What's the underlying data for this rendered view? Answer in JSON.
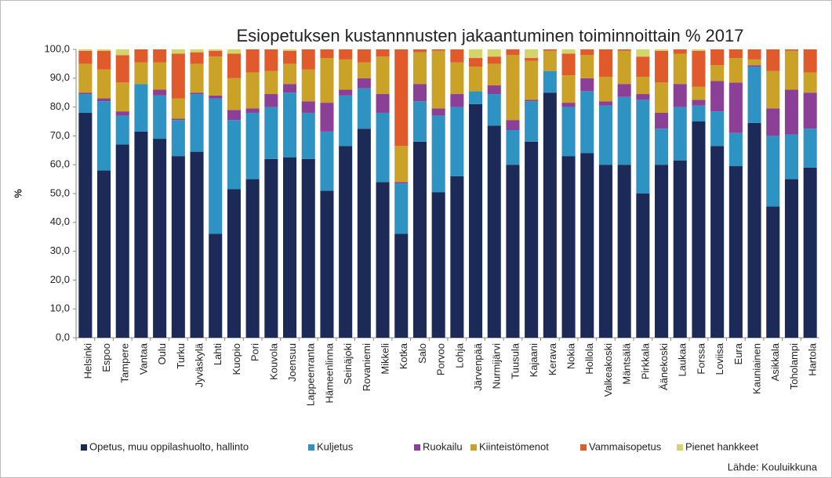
{
  "chart_data": {
    "type": "stacked_bar",
    "title": "Esiopetuksen kustannnusten jakaantuminen toiminnoittain % 2017",
    "y_label": "%",
    "source": "Lähde: Kouluikkuna",
    "categories": [
      "Helsinki",
      "Espoo",
      "Tampere",
      "Vantaa",
      "Oulu",
      "Turku",
      "Jyväskylä",
      "Lahti",
      "Kuopio",
      "Pori",
      "Kouvola",
      "Joensuu",
      "Lappeenranta",
      "Hämeenlinna",
      "Seinäjoki",
      "Rovaniemi",
      "Mikkeli",
      "Kotka",
      "Salo",
      "Porvoo",
      "Lohja",
      "Järvenpää",
      "Nurmijärvi",
      "Tuusula",
      "Kajaani",
      "Kerava",
      "Nokia",
      "Hollola",
      "Valkeakoski",
      "Mäntsälä",
      "Pirkkala",
      "Äänekoski",
      "Laukaa",
      "Forssa",
      "Loviisa",
      "Eura",
      "Kauniainen",
      "Asikkala",
      "Toholampi",
      "Hartola"
    ],
    "series": [
      {
        "name": "Opetus, muu oppilashuolto, hallinto",
        "color": "#1b2a57",
        "values": [
          78,
          58,
          67,
          71.5,
          69,
          63,
          64.5,
          36,
          51.5,
          55,
          62,
          62.5,
          62,
          51,
          66.5,
          72.5,
          54,
          36,
          68,
          50.5,
          56,
          81,
          73.5,
          60,
          68,
          85,
          63,
          64,
          60,
          60,
          50,
          60,
          61.5,
          75,
          66.5,
          59.5,
          74.5,
          45.5,
          55,
          59
        ]
      },
      {
        "name": "Kuljetus",
        "color": "#2e93c3",
        "values": [
          6.5,
          24,
          10,
          16.5,
          15,
          12.5,
          20,
          47,
          24,
          23,
          18,
          22.5,
          16,
          20.5,
          17.5,
          14,
          24,
          17.5,
          14,
          26.5,
          24,
          4.5,
          11,
          12,
          14,
          7.5,
          17,
          21.5,
          20.5,
          23.5,
          32.5,
          12.5,
          18.5,
          5.5,
          12,
          11.5,
          19.5,
          24.5,
          15.5,
          13.5
        ]
      },
      {
        "name": "Ruokailu",
        "color": "#8c3f96",
        "values": [
          0.5,
          1,
          1.5,
          0,
          2,
          0.5,
          0.5,
          1,
          3.5,
          1.5,
          4.5,
          3,
          4,
          10,
          2,
          3.5,
          6.5,
          0.5,
          6,
          2.5,
          4.5,
          0,
          3,
          3.5,
          0.5,
          0,
          1.5,
          4.5,
          1.5,
          4.5,
          2,
          5.5,
          8,
          2,
          10.5,
          17.5,
          0.5,
          9.5,
          15.5,
          12.5
        ]
      },
      {
        "name": "Kiinteistömenot",
        "color": "#c9a227",
        "values": [
          10,
          10,
          10,
          7.5,
          9.5,
          7,
          10,
          13.5,
          11,
          12.5,
          8,
          7,
          11,
          15.5,
          10.5,
          5.5,
          13,
          12.5,
          11,
          20,
          11,
          8.5,
          7.5,
          22.5,
          13.5,
          7,
          9.5,
          8,
          8.5,
          11.5,
          6,
          10.5,
          10.5,
          4.5,
          5.5,
          8.5,
          2,
          13,
          13.5,
          7
        ]
      },
      {
        "name": "Vammaisopetus",
        "color": "#e05a2b",
        "values": [
          4.5,
          6.5,
          9.5,
          4.5,
          4.5,
          15.5,
          4,
          2,
          8.5,
          8,
          7.5,
          4.5,
          7,
          3,
          3.5,
          4.5,
          2.5,
          33.5,
          1,
          0.5,
          4.5,
          3,
          2.5,
          2,
          1,
          0.5,
          7.5,
          2,
          9.5,
          0.5,
          7,
          11,
          1.5,
          12.5,
          5.5,
          3,
          3.5,
          7.5,
          0.5,
          8
        ]
      },
      {
        "name": "Pienet hankkeet",
        "color": "#d3d46a",
        "values": [
          0.5,
          0.5,
          2,
          0,
          0,
          1.5,
          1,
          0.5,
          1.5,
          0,
          0,
          0.5,
          0,
          0,
          0,
          0,
          0,
          0,
          0,
          0,
          0,
          3,
          2.5,
          0,
          3,
          0,
          1.5,
          0,
          0,
          0,
          2.5,
          0.5,
          0,
          0.5,
          0,
          0,
          0,
          0,
          0,
          0
        ]
      }
    ],
    "ylim": [
      0,
      100
    ],
    "yticks": [
      {
        "value": 0,
        "label": "0,0"
      },
      {
        "value": 10,
        "label": "10,0"
      },
      {
        "value": 20,
        "label": "20,0"
      },
      {
        "value": 30,
        "label": "30,0"
      },
      {
        "value": 40,
        "label": "40,0"
      },
      {
        "value": 50,
        "label": "50,0"
      },
      {
        "value": 60,
        "label": "60,0"
      },
      {
        "value": 70,
        "label": "70,0"
      },
      {
        "value": 80,
        "label": "80,0"
      },
      {
        "value": 90,
        "label": "90,0"
      },
      {
        "value": 100,
        "label": "100,0"
      }
    ],
    "legend": "bottom"
  }
}
